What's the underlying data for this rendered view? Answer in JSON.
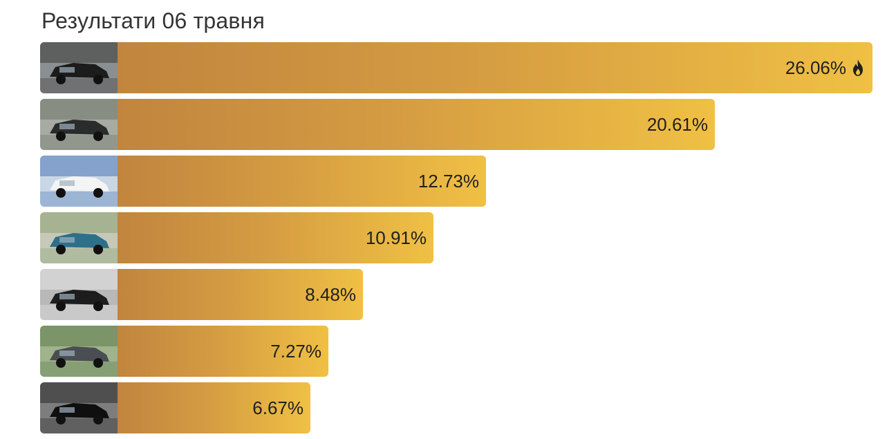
{
  "title": "Результати 06 травня",
  "chart_data": {
    "type": "bar",
    "orientation": "horizontal",
    "title": "Результати 06 травня",
    "categories": [
      "",
      "",
      "",
      "",
      "",
      "",
      ""
    ],
    "values": [
      26.06,
      20.61,
      12.73,
      10.91,
      8.48,
      7.27,
      6.67
    ],
    "labels": [
      "26.06%",
      "20.61%",
      "12.73%",
      "10.91%",
      "8.48%",
      "7.27%",
      "6.67%"
    ],
    "unit": "%",
    "leader_icon": "fire-icon",
    "thumbnails": [
      "car-photo-icon",
      "car-photo-icon",
      "car-photo-icon",
      "car-photo-icon",
      "car-photo-icon",
      "car-photo-icon",
      "car-photo-icon"
    ],
    "colors": {
      "bar_start": "#c1853e",
      "bar_end": "#f0c044",
      "text": "#1f1f1f"
    }
  }
}
